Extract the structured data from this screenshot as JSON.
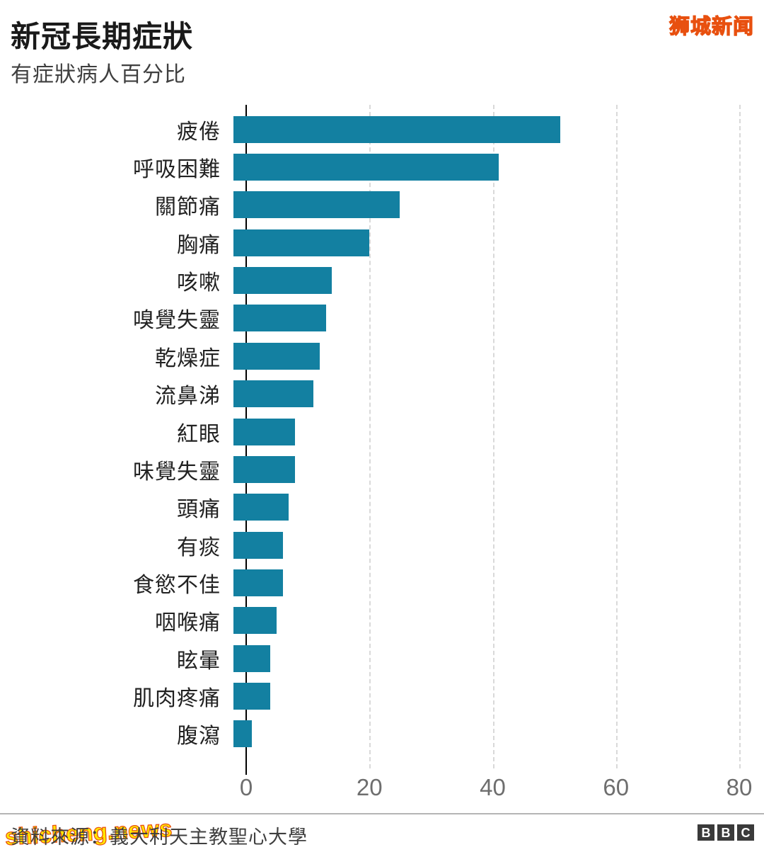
{
  "header": {
    "title": "新冠長期症狀",
    "subtitle": "有症狀病人百分比"
  },
  "watermarks": {
    "top_right": "狮城新闻",
    "bottom_left": "shicheng.news",
    "fill_color": "#ffe900",
    "outline_color": "#e8500f"
  },
  "chart_data": {
    "type": "bar",
    "orientation": "horizontal",
    "title": "新冠長期症狀",
    "subtitle": "有症狀病人百分比",
    "xlabel": "",
    "ylabel": "",
    "categories": [
      "疲倦",
      "呼吸困難",
      "關節痛",
      "胸痛",
      "咳嗽",
      "嗅覺失靈",
      "乾燥症",
      "流鼻涕",
      "紅眼",
      "味覺失靈",
      "頭痛",
      "有痰",
      "食慾不佳",
      "咽喉痛",
      "眩暈",
      "肌肉疼痛",
      "腹瀉"
    ],
    "values": [
      53,
      43,
      27,
      22,
      16,
      15,
      14,
      13,
      10,
      10,
      9,
      8,
      8,
      7,
      6,
      6,
      3
    ],
    "xlim": [
      0,
      80
    ],
    "x_ticks": [
      0,
      20,
      40,
      60,
      80
    ],
    "bar_color": "#1380A1",
    "grid": "dashed-vertical",
    "legend": "none"
  },
  "footer": {
    "source": "資料來源：義大利天主教聖心大學",
    "logo_letters": [
      "B",
      "B",
      "C"
    ]
  }
}
